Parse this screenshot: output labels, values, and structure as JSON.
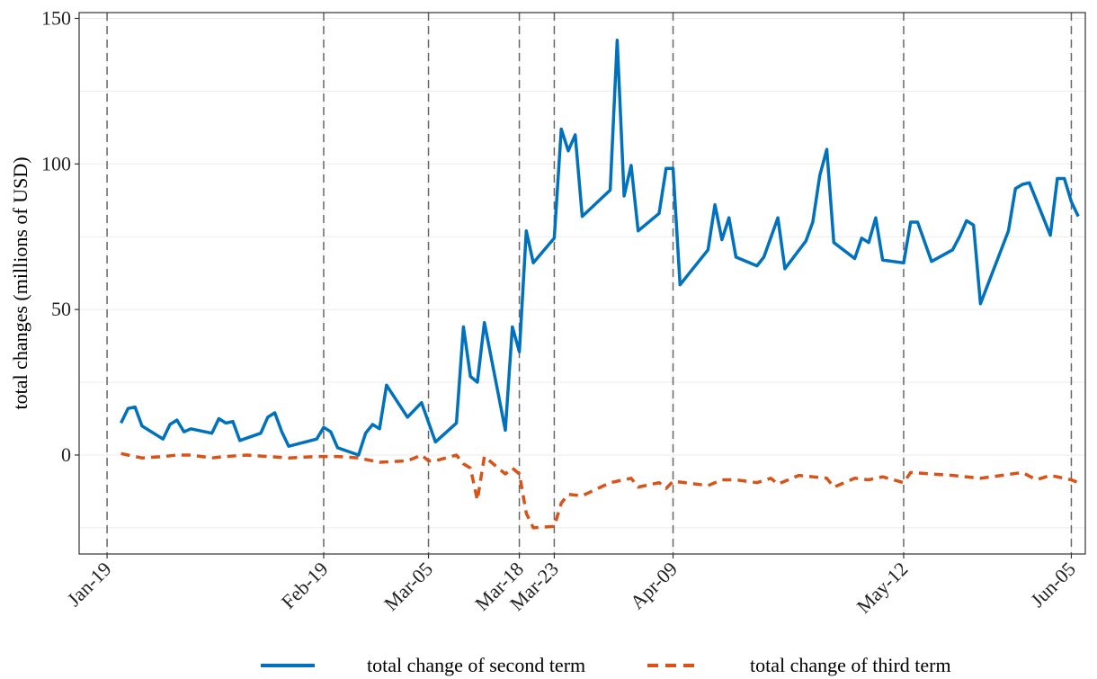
{
  "chart_data": {
    "type": "line",
    "xlabel": "",
    "ylabel": "total changes (millions of USD)",
    "ylim": [
      -34,
      152
    ],
    "yticks": [
      0,
      50,
      100,
      150
    ],
    "xlim": [
      "2020-01-15",
      "2020-06-07"
    ],
    "x_ticks": [
      {
        "date": "2020-01-19",
        "label": "Jan-19"
      },
      {
        "date": "2020-02-19",
        "label": "Feb-19"
      },
      {
        "date": "2020-03-05",
        "label": "Mar-05"
      },
      {
        "date": "2020-03-18",
        "label": "Mar-18"
      },
      {
        "date": "2020-03-23",
        "label": "Mar-23"
      },
      {
        "date": "2020-04-09",
        "label": "Apr-09"
      },
      {
        "date": "2020-05-12",
        "label": "May-12"
      },
      {
        "date": "2020-06-05",
        "label": "Jun-05"
      }
    ],
    "vlines": [
      "2020-01-19",
      "2020-02-19",
      "2020-03-05",
      "2020-03-18",
      "2020-03-23",
      "2020-04-09",
      "2020-05-12",
      "2020-06-05"
    ],
    "grid": true,
    "legend_position": "bottom",
    "series": [
      {
        "name": "total change of second term",
        "color": "#0072BD",
        "dash": "solid",
        "points": [
          [
            "2020-01-21",
            11
          ],
          [
            "2020-01-22",
            16
          ],
          [
            "2020-01-23",
            16.5
          ],
          [
            "2020-01-24",
            10
          ],
          [
            "2020-01-27",
            5.5
          ],
          [
            "2020-01-28",
            10.5
          ],
          [
            "2020-01-29",
            12
          ],
          [
            "2020-01-30",
            8
          ],
          [
            "2020-01-31",
            9
          ],
          [
            "2020-02-03",
            7.5
          ],
          [
            "2020-02-04",
            12.5
          ],
          [
            "2020-02-05",
            11
          ],
          [
            "2020-02-06",
            11.5
          ],
          [
            "2020-02-07",
            5
          ],
          [
            "2020-02-10",
            7.5
          ],
          [
            "2020-02-11",
            13
          ],
          [
            "2020-02-12",
            14.5
          ],
          [
            "2020-02-13",
            8
          ],
          [
            "2020-02-14",
            3
          ],
          [
            "2020-02-18",
            5.5
          ],
          [
            "2020-02-19",
            9.5
          ],
          [
            "2020-02-20",
            8
          ],
          [
            "2020-02-21",
            2.5
          ],
          [
            "2020-02-24",
            0
          ],
          [
            "2020-02-25",
            7.5
          ],
          [
            "2020-02-26",
            10.5
          ],
          [
            "2020-02-27",
            9
          ],
          [
            "2020-02-28",
            24
          ],
          [
            "2020-03-02",
            13
          ],
          [
            "2020-03-04",
            18
          ],
          [
            "2020-03-06",
            4.5
          ],
          [
            "2020-03-09",
            11
          ],
          [
            "2020-03-10",
            44
          ],
          [
            "2020-03-11",
            27
          ],
          [
            "2020-03-12",
            25
          ],
          [
            "2020-03-13",
            45.5
          ],
          [
            "2020-03-16",
            8.5
          ],
          [
            "2020-03-17",
            44
          ],
          [
            "2020-03-18",
            35.5
          ],
          [
            "2020-03-19",
            77
          ],
          [
            "2020-03-20",
            66
          ],
          [
            "2020-03-23",
            74.5
          ],
          [
            "2020-03-24",
            112
          ],
          [
            "2020-03-25",
            104.5
          ],
          [
            "2020-03-26",
            110
          ],
          [
            "2020-03-27",
            82
          ],
          [
            "2020-03-31",
            91
          ],
          [
            "2020-04-01",
            142.5
          ],
          [
            "2020-04-02",
            89
          ],
          [
            "2020-04-03",
            99.5
          ],
          [
            "2020-04-04",
            77
          ],
          [
            "2020-04-07",
            83
          ],
          [
            "2020-04-08",
            98.5
          ],
          [
            "2020-04-09",
            98.5
          ],
          [
            "2020-04-10",
            58.5
          ],
          [
            "2020-04-14",
            70.5
          ],
          [
            "2020-04-15",
            86
          ],
          [
            "2020-04-16",
            74
          ],
          [
            "2020-04-17",
            81.5
          ],
          [
            "2020-04-18",
            68
          ],
          [
            "2020-04-21",
            65
          ],
          [
            "2020-04-22",
            68
          ],
          [
            "2020-04-24",
            81.5
          ],
          [
            "2020-04-25",
            64
          ],
          [
            "2020-04-28",
            73.5
          ],
          [
            "2020-04-29",
            80
          ],
          [
            "2020-04-30",
            96
          ],
          [
            "2020-05-01",
            105
          ],
          [
            "2020-05-02",
            73
          ],
          [
            "2020-05-05",
            67.5
          ],
          [
            "2020-05-06",
            74.5
          ],
          [
            "2020-05-07",
            73
          ],
          [
            "2020-05-08",
            81.5
          ],
          [
            "2020-05-09",
            67
          ],
          [
            "2020-05-12",
            66
          ],
          [
            "2020-05-13",
            80
          ],
          [
            "2020-05-14",
            80
          ],
          [
            "2020-05-16",
            66.5
          ],
          [
            "2020-05-19",
            70.5
          ],
          [
            "2020-05-20",
            75
          ],
          [
            "2020-05-21",
            80.5
          ],
          [
            "2020-05-22",
            79
          ],
          [
            "2020-05-23",
            52
          ],
          [
            "2020-05-27",
            77
          ],
          [
            "2020-05-28",
            91.5
          ],
          [
            "2020-05-29",
            93
          ],
          [
            "2020-05-30",
            93.5
          ],
          [
            "2020-06-02",
            75.5
          ],
          [
            "2020-06-03",
            95
          ],
          [
            "2020-06-04",
            95
          ],
          [
            "2020-06-05",
            87
          ],
          [
            "2020-06-06",
            82
          ]
        ]
      },
      {
        "name": "total change of third term",
        "color": "#D95319",
        "dash": "dashed",
        "points": [
          [
            "2020-01-21",
            0.5
          ],
          [
            "2020-01-22",
            0
          ],
          [
            "2020-01-24",
            -1
          ],
          [
            "2020-01-27",
            -0.5
          ],
          [
            "2020-01-29",
            0
          ],
          [
            "2020-01-31",
            0
          ],
          [
            "2020-02-03",
            -1
          ],
          [
            "2020-02-05",
            -0.5
          ],
          [
            "2020-02-08",
            0
          ],
          [
            "2020-02-11",
            -0.5
          ],
          [
            "2020-02-14",
            -1
          ],
          [
            "2020-02-18",
            -0.5
          ],
          [
            "2020-02-21",
            -0.5
          ],
          [
            "2020-02-24",
            -1
          ],
          [
            "2020-02-27",
            -2.5
          ],
          [
            "2020-03-02",
            -2
          ],
          [
            "2020-03-04",
            0
          ],
          [
            "2020-03-05",
            -2
          ],
          [
            "2020-03-06",
            -2
          ],
          [
            "2020-03-09",
            0
          ],
          [
            "2020-03-10",
            -3
          ],
          [
            "2020-03-11",
            -4.5
          ],
          [
            "2020-03-12",
            -15.5
          ],
          [
            "2020-03-13",
            -0.5
          ],
          [
            "2020-03-16",
            -6.5
          ],
          [
            "2020-03-17",
            -4.5
          ],
          [
            "2020-03-18",
            -6.5
          ],
          [
            "2020-03-19",
            -20
          ],
          [
            "2020-03-20",
            -25
          ],
          [
            "2020-03-23",
            -24.5
          ],
          [
            "2020-03-24",
            -16.5
          ],
          [
            "2020-03-25",
            -13.5
          ],
          [
            "2020-03-27",
            -14
          ],
          [
            "2020-03-31",
            -9.5
          ],
          [
            "2020-04-03",
            -8
          ],
          [
            "2020-04-04",
            -11
          ],
          [
            "2020-04-07",
            -9.5
          ],
          [
            "2020-04-08",
            -11.5
          ],
          [
            "2020-04-09",
            -9
          ],
          [
            "2020-04-14",
            -10.5
          ],
          [
            "2020-04-16",
            -8.5
          ],
          [
            "2020-04-18",
            -8.5
          ],
          [
            "2020-04-21",
            -9.5
          ],
          [
            "2020-04-23",
            -8
          ],
          [
            "2020-04-24",
            -10
          ],
          [
            "2020-04-27",
            -7
          ],
          [
            "2020-05-01",
            -8
          ],
          [
            "2020-05-02",
            -11
          ],
          [
            "2020-05-05",
            -8
          ],
          [
            "2020-05-07",
            -8.5
          ],
          [
            "2020-05-09",
            -7.5
          ],
          [
            "2020-05-12",
            -9.5
          ],
          [
            "2020-05-13",
            -6
          ],
          [
            "2020-05-19",
            -7
          ],
          [
            "2020-05-21",
            -7.5
          ],
          [
            "2020-05-23",
            -8
          ],
          [
            "2020-05-26",
            -7
          ],
          [
            "2020-05-29",
            -6
          ],
          [
            "2020-05-31",
            -8.5
          ],
          [
            "2020-06-02",
            -7
          ],
          [
            "2020-06-05",
            -8.5
          ],
          [
            "2020-06-06",
            -9.5
          ]
        ]
      }
    ]
  }
}
